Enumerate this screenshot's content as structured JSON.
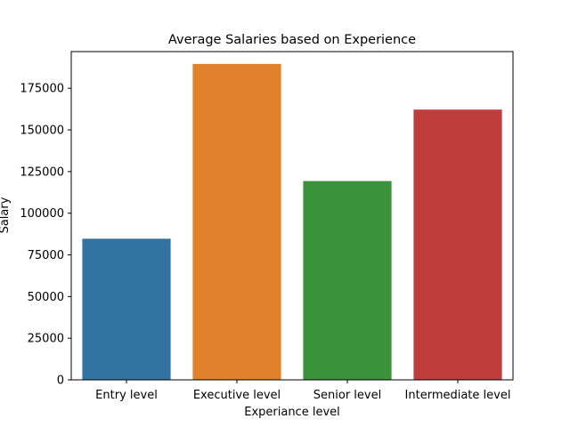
{
  "chart_data": {
    "type": "bar",
    "title": "Average Salaries based on Experience",
    "xlabel": "Experiance level",
    "ylabel": "Salary",
    "categories": [
      "Entry level",
      "Executive level",
      "Senior level",
      "Intermediate level"
    ],
    "values": [
      84700,
      189600,
      119300,
      162200
    ],
    "colors": [
      "#3274a1",
      "#e1812c",
      "#3a923a",
      "#c03d3e"
    ],
    "ylim": [
      0,
      197000
    ],
    "yticks": [
      0,
      25000,
      50000,
      75000,
      100000,
      125000,
      150000,
      175000
    ],
    "grid": false,
    "legend": "none"
  }
}
